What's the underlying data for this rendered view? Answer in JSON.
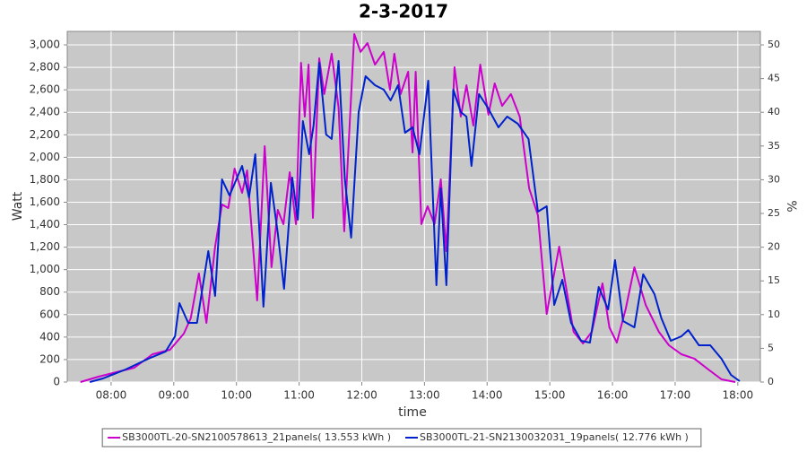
{
  "chart_data": {
    "type": "line",
    "title": "2-3-2017",
    "x_label": "time",
    "y_label": "Watt",
    "y2_label": "%",
    "grid": true,
    "background": "#c8c8c8",
    "xlim": [
      7.3,
      18.36
    ],
    "xticks": [
      {
        "value": 8,
        "label": "08:00"
      },
      {
        "value": 9,
        "label": "09:00"
      },
      {
        "value": 10,
        "label": "10:00"
      },
      {
        "value": 11,
        "label": "11:00"
      },
      {
        "value": 12,
        "label": "12:00"
      },
      {
        "value": 13,
        "label": "13:00"
      },
      {
        "value": 14,
        "label": "14:00"
      },
      {
        "value": 15,
        "label": "15:00"
      },
      {
        "value": 16,
        "label": "16:00"
      },
      {
        "value": 17,
        "label": "17:00"
      },
      {
        "value": 18,
        "label": "18:00"
      }
    ],
    "ylim": [
      0,
      3120
    ],
    "yticks": [
      0,
      200,
      400,
      600,
      800,
      {
        "value": 1000,
        "label": "1,000"
      },
      {
        "value": 1200,
        "label": "1,200"
      },
      {
        "value": 1400,
        "label": "1,400"
      },
      {
        "value": 1600,
        "label": "1,600"
      },
      {
        "value": 1800,
        "label": "1,800"
      },
      {
        "value": 2000,
        "label": "2,000"
      },
      {
        "value": 2200,
        "label": "2,200"
      },
      {
        "value": 2400,
        "label": "2,400"
      },
      {
        "value": 2600,
        "label": "2,600"
      },
      {
        "value": 2800,
        "label": "2,800"
      },
      {
        "value": 3000,
        "label": "3,000"
      }
    ],
    "y2lim": [
      0,
      52
    ],
    "y2ticks": [
      0,
      5,
      10,
      15,
      20,
      25,
      30,
      35,
      40,
      45,
      50
    ],
    "series": [
      {
        "name": "SB3000TL-20-SN2100578613_21panels( 13.553 kWh )",
        "color": "#cc00cc",
        "x": [
          7.51,
          7.8,
          8.37,
          8.66,
          8.94,
          9.16,
          9.27,
          9.4,
          9.52,
          9.66,
          9.77,
          9.87,
          9.97,
          10.09,
          10.17,
          10.33,
          10.45,
          10.56,
          10.66,
          10.75,
          10.85,
          10.95,
          11.03,
          11.09,
          11.15,
          11.22,
          11.32,
          11.4,
          11.52,
          11.63,
          11.72,
          11.88,
          11.98,
          12.09,
          12.21,
          12.35,
          12.45,
          12.52,
          12.62,
          12.74,
          12.81,
          12.86,
          12.95,
          13.05,
          13.16,
          13.26,
          13.35,
          13.48,
          13.58,
          13.67,
          13.78,
          13.89,
          14.02,
          14.12,
          14.24,
          14.38,
          14.52,
          14.67,
          14.81,
          14.95,
          15.15,
          15.38,
          15.53,
          15.67,
          15.84,
          15.95,
          16.07,
          16.21,
          16.35,
          16.53,
          16.74,
          16.9,
          17.1,
          17.31,
          17.53,
          17.74,
          17.96
        ],
        "values": [
          0,
          48,
          128,
          247,
          287,
          431,
          567,
          966,
          527,
          1205,
          1580,
          1548,
          1899,
          1684,
          1883,
          726,
          2099,
          1022,
          1532,
          1404,
          1867,
          1404,
          2841,
          2362,
          2825,
          1460,
          2881,
          2562,
          2921,
          2442,
          1341,
          3096,
          2937,
          3016,
          2825,
          2937,
          2601,
          2921,
          2562,
          2761,
          2043,
          2761,
          1404,
          1564,
          1404,
          1803,
          1165,
          2801,
          2362,
          2641,
          2282,
          2825,
          2378,
          2657,
          2458,
          2562,
          2362,
          1724,
          1484,
          606,
          1205,
          447,
          343,
          447,
          878,
          487,
          351,
          646,
          1021,
          686,
          447,
          327,
          247,
          207,
          112,
          24,
          0
        ]
      },
      {
        "name": "SB3000TL-21-SN2130032031_19panels( 12.776 kWh )",
        "color": "#0022cc",
        "x": [
          7.66,
          7.87,
          8.23,
          8.59,
          8.87,
          9.02,
          9.09,
          9.23,
          9.37,
          9.55,
          9.66,
          9.77,
          9.89,
          10.09,
          10.2,
          10.3,
          10.43,
          10.55,
          10.66,
          10.76,
          10.89,
          10.98,
          11.06,
          11.16,
          11.23,
          11.32,
          11.43,
          11.52,
          11.63,
          11.73,
          11.83,
          11.95,
          12.06,
          12.21,
          12.35,
          12.46,
          12.58,
          12.69,
          12.81,
          12.92,
          13.06,
          13.19,
          13.26,
          13.35,
          13.46,
          13.58,
          13.67,
          13.75,
          13.87,
          14.01,
          14.18,
          14.32,
          14.49,
          14.66,
          14.81,
          14.95,
          15.07,
          15.2,
          15.34,
          15.5,
          15.64,
          15.78,
          15.93,
          16.04,
          16.17,
          16.35,
          16.49,
          16.67,
          16.78,
          16.93,
          17.1,
          17.21,
          17.38,
          17.56,
          17.74,
          17.89,
          18.03
        ],
        "values": [
          0,
          32,
          112,
          207,
          271,
          407,
          702,
          527,
          527,
          1165,
          766,
          1803,
          1660,
          1923,
          1644,
          2027,
          670,
          1772,
          1325,
          830,
          1819,
          1444,
          2322,
          2027,
          2282,
          2841,
          2202,
          2163,
          2857,
          1803,
          1285,
          2402,
          2721,
          2641,
          2601,
          2506,
          2641,
          2218,
          2266,
          2027,
          2681,
          862,
          1724,
          862,
          2601,
          2402,
          2362,
          1923,
          2562,
          2442,
          2266,
          2362,
          2298,
          2163,
          1516,
          1564,
          686,
          910,
          527,
          367,
          351,
          846,
          646,
          1085,
          543,
          487,
          958,
          782,
          567,
          367,
          407,
          463,
          327,
          327,
          207,
          64,
          8
        ]
      }
    ]
  }
}
